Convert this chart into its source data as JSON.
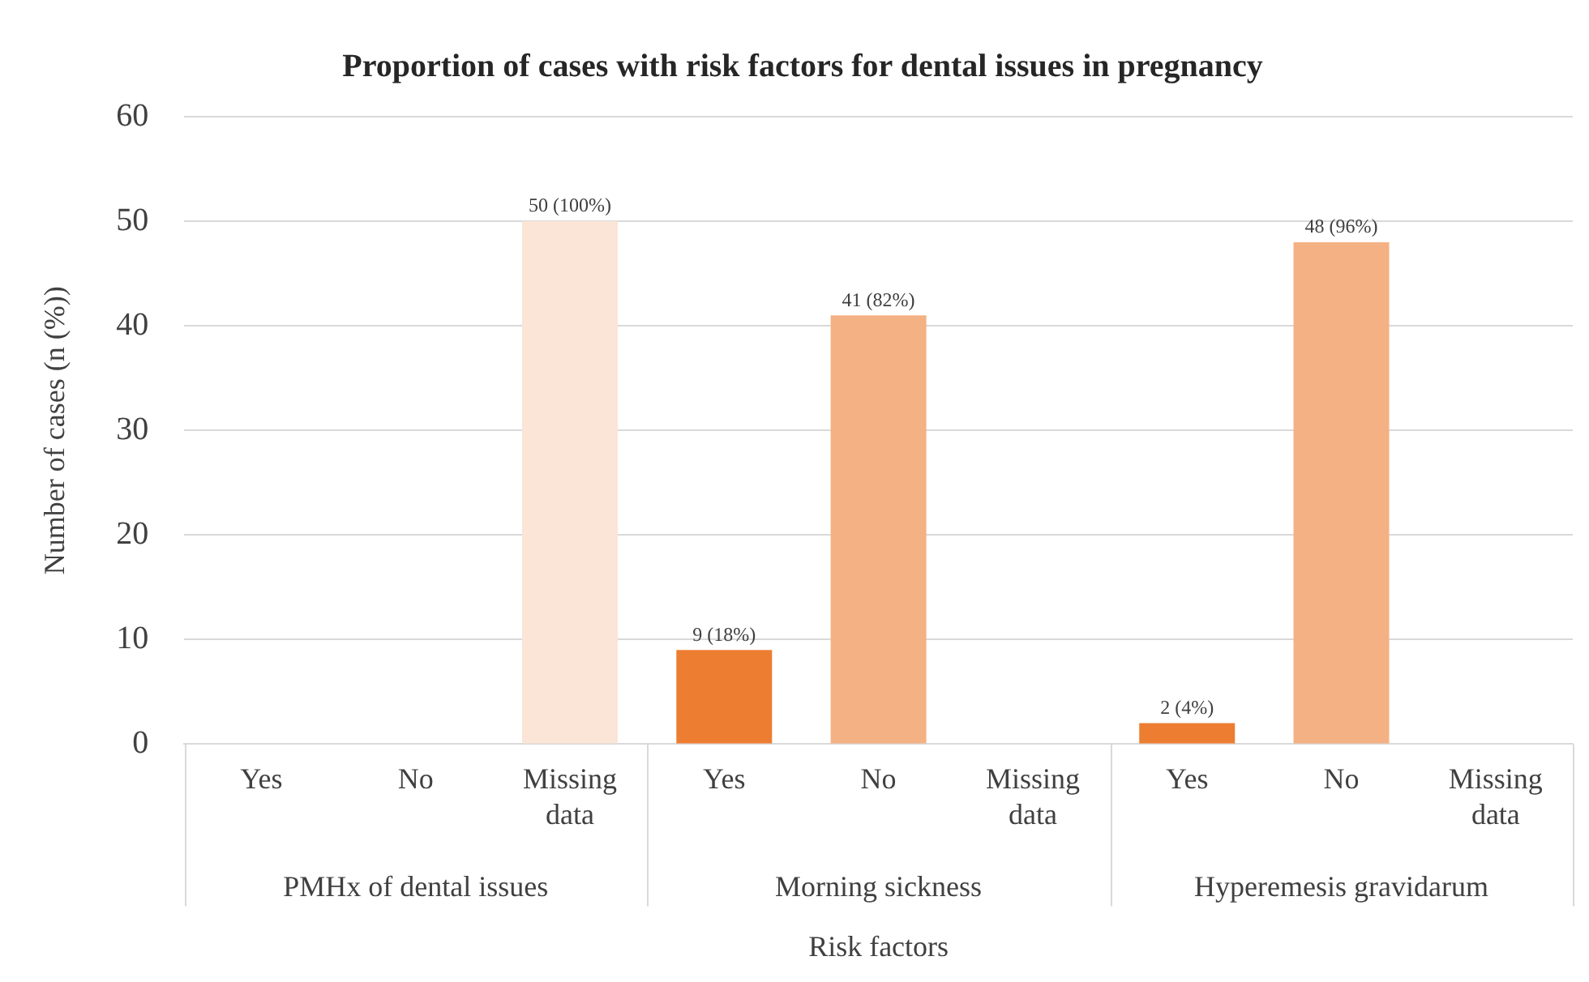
{
  "chart_data": {
    "type": "bar",
    "title": "Proportion of cases with risk factors for dental issues in pregnancy",
    "xlabel": "Risk factors",
    "ylabel": "Number of cases (n (%))",
    "categories": [
      "Yes",
      "No",
      "Missing data",
      "Yes",
      "No",
      "Missing data",
      "Yes",
      "No",
      "Missing data"
    ],
    "values": [
      0,
      0,
      50,
      9,
      41,
      0,
      2,
      48,
      0
    ],
    "colors": [
      "#ed7d31",
      "#f4b183",
      "#fbe5d6",
      "#ed7d31",
      "#f4b183",
      "#fbe5d6",
      "#ed7d31",
      "#f4b183",
      "#fbe5d6"
    ],
    "value_labels": [
      null,
      null,
      "50 (100%)",
      "9 (18%)",
      "41 (82%)",
      null,
      "2 (4%)",
      "48 (96%)",
      null
    ],
    "annotations": [
      "PMHx of dental issues",
      "Morning sickness",
      "Hyperemesis gravidarum"
    ],
    "ylim": [
      0,
      60
    ],
    "yticks": [
      0,
      10,
      20,
      30,
      40,
      50,
      60
    ],
    "grid": "y",
    "legend": false
  }
}
